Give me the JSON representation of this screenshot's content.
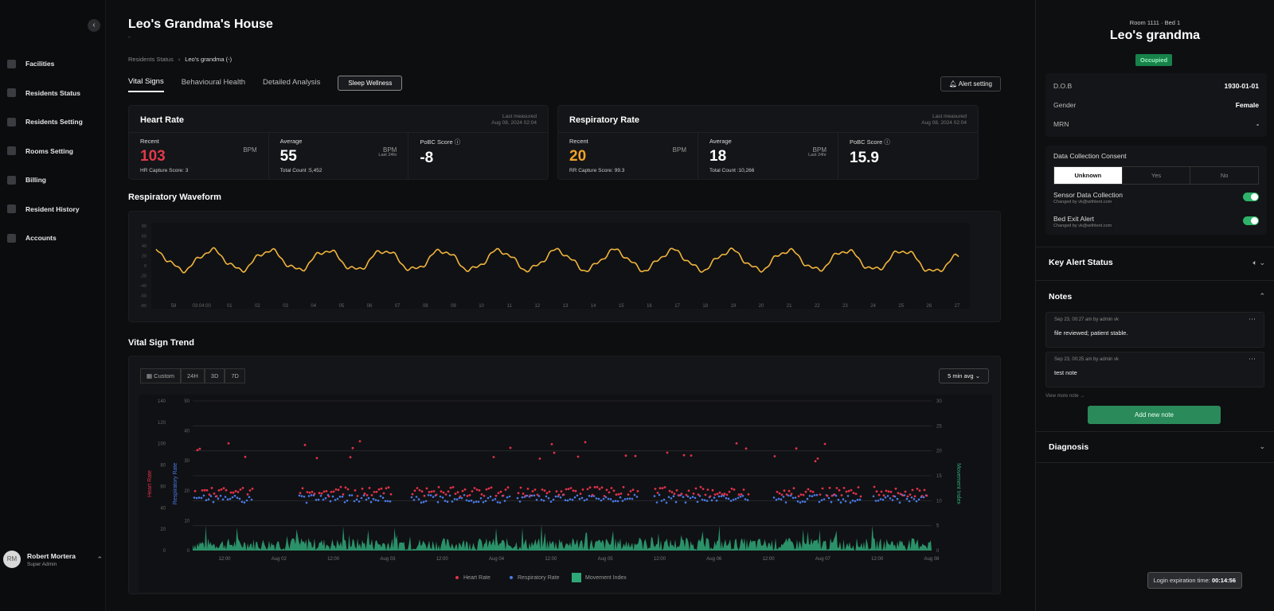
{
  "sidebar": {
    "items": [
      {
        "label": "Facilities",
        "icon": "building-icon"
      },
      {
        "label": "Residents Status",
        "icon": "status-icon"
      },
      {
        "label": "Residents Setting",
        "icon": "settings-icon"
      },
      {
        "label": "Rooms Setting",
        "icon": "room-icon"
      },
      {
        "label": "Billing",
        "icon": "billing-icon"
      },
      {
        "label": "Resident History",
        "icon": "history-icon"
      },
      {
        "label": "Accounts",
        "icon": "accounts-icon"
      }
    ],
    "user": {
      "initials": "RM",
      "name": "Robert Mortera",
      "role": "Super Admin"
    }
  },
  "header": {
    "title": "Leo's Grandma's House",
    "subtitle": "-",
    "breadcrumb": [
      "Residents Status",
      "Leo's grandma (-)"
    ],
    "tabs": [
      "Vital Signs",
      "Behavioural Health",
      "Detailed Analysis"
    ],
    "tab_button": "Sleep Wellness",
    "alert_button": "Alert setting"
  },
  "heart_rate": {
    "title": "Heart Rate",
    "last_label": "Last measured",
    "last_time": "Aug 08, 2024 02:04",
    "recent_label": "Recent",
    "recent_value": "103",
    "recent_unit": "BPM",
    "recent_foot": "HR Capture Score: 3",
    "avg_label": "Average",
    "avg_value": "55",
    "avg_unit": "BPM",
    "avg_unit_sub": "Last 24hr",
    "avg_foot": "Total Count :5,452",
    "pobc_label": "PoBC Score",
    "pobc_value": "-8"
  },
  "resp_rate": {
    "title": "Respiratory Rate",
    "last_label": "Last measured",
    "last_time": "Aug 08, 2024 02:04",
    "recent_label": "Recent",
    "recent_value": "20",
    "recent_unit": "BPM",
    "recent_foot": "RR Capture Score: 99.3",
    "avg_label": "Average",
    "avg_value": "18",
    "avg_unit": "BPM",
    "avg_unit_sub": "Last 24hr",
    "avg_foot": "Total Count :10,266",
    "pobc_label": "PoBC Score",
    "pobc_value": "15.9"
  },
  "waveform": {
    "title": "Respiratory Waveform",
    "color": "#f0b43c",
    "y_ticks": [
      "80",
      "60",
      "40",
      "20",
      "0",
      "-20",
      "-40",
      "-60",
      "-80"
    ],
    "x_ticks": [
      "58",
      "03:04:00",
      "01",
      "02",
      "03",
      "04",
      "05",
      "06",
      "07",
      "08",
      "09",
      "10",
      "11",
      "12",
      "13",
      "14",
      "15",
      "16",
      "17",
      "18",
      "19",
      "20",
      "21",
      "22",
      "23",
      "24",
      "25",
      "26",
      "27"
    ]
  },
  "trend": {
    "title": "Vital Sign Trend",
    "ranges": [
      "Custom",
      "24H",
      "3D",
      "7D"
    ],
    "avg_select": "5 min avg",
    "x_ticks": [
      "12:00",
      "Aug 02",
      "12:00",
      "Aug 03",
      "12:00",
      "Aug 04",
      "12:00",
      "Aug 05",
      "12:00",
      "Aug 06",
      "12:00",
      "Aug 07",
      "12:00",
      "Aug 08"
    ],
    "hr_ticks": [
      "140",
      "120",
      "100",
      "80",
      "60",
      "40",
      "20",
      "0"
    ],
    "rr_ticks": [
      "50",
      "40",
      "30",
      "20",
      "10",
      "0"
    ],
    "mi_ticks": [
      "30",
      "25",
      "20",
      "15",
      "10",
      "5",
      "0"
    ],
    "axis_hr": "Heart Rate",
    "axis_rr": "Respiratory Rate",
    "axis_mi": "Movement Index",
    "legend": [
      "Heart Rate",
      "Respiratory Rate",
      "Movement Index"
    ],
    "colors": {
      "hr": "#e0324a",
      "rr": "#4a7ae8",
      "mi": "#2fa878"
    }
  },
  "resident": {
    "room": "Room 1111",
    "bed": "Bed 1",
    "name": "Leo's grandma",
    "status": "Occupied",
    "info": [
      {
        "k": "D.O.B",
        "v": "1930-01-01"
      },
      {
        "k": "Gender",
        "v": "Female"
      },
      {
        "k": "MRN",
        "v": "-"
      }
    ],
    "consent_title": "Data Collection Consent",
    "consent_options": [
      "Unknown",
      "Yes",
      "No"
    ],
    "toggles": [
      {
        "label": "Sensor Data Collection",
        "sub": "Changed by vk@withtent.com"
      },
      {
        "label": "Bed Exit Alert",
        "sub": "Changed by vk@withtent.com"
      }
    ]
  },
  "key_alert": {
    "title": "Key Alert Status"
  },
  "notes": {
    "title": "Notes",
    "items": [
      {
        "meta": "Sep 23, 00:27 am by admin vk",
        "text": "file reviewed; patient stable."
      },
      {
        "meta": "Sep 23, 00:25 am by admin vk",
        "text": "test note"
      }
    ],
    "view_more": "View more note →",
    "add_button": "Add new note"
  },
  "diagnosis": {
    "title": "Diagnosis"
  },
  "session": {
    "label": "Login expiration time:",
    "time": "00:14:56"
  }
}
